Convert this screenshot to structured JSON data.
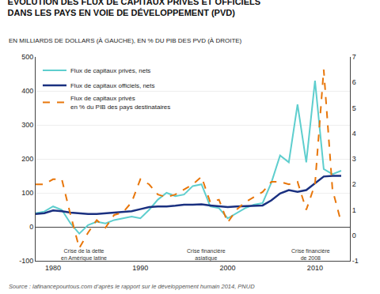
{
  "chart_data": {
    "type": "line",
    "title": "ÉVOLUTION DES FLUX DE CAPITAUX PRIVÉS ET OFFICIELS\nDANS LES PAYS EN VOIE DE DÉVELOPPEMENT (PVD)",
    "subtitle": "EN MILLIARDS DE DOLLARS (À GAUCHE), EN % DU PIB DES PVD (À DROITE)",
    "source": "Source : lafinancepourtous.com d’après le rapport sur le développement humain 2014, PNUD",
    "x": [
      1978,
      1979,
      1980,
      1981,
      1982,
      1983,
      1984,
      1985,
      1986,
      1987,
      1988,
      1989,
      1990,
      1991,
      1992,
      1993,
      1994,
      1995,
      1996,
      1997,
      1998,
      1999,
      2000,
      2001,
      2002,
      2003,
      2004,
      2005,
      2006,
      2007,
      2008,
      2009,
      2010,
      2011,
      2012,
      2013
    ],
    "series": [
      {
        "name": "Flux de capitaux privés, nets",
        "color": "#5ecece",
        "line_style": "solid",
        "values": [
          40,
          45,
          60,
          50,
          10,
          -20,
          5,
          15,
          10,
          20,
          25,
          30,
          25,
          50,
          80,
          100,
          90,
          95,
          120,
          125,
          60,
          55,
          25,
          40,
          55,
          65,
          70,
          130,
          210,
          190,
          360,
          190,
          430,
          170,
          155,
          165
        ]
      },
      {
        "name": "Flux de capitaux officiels, nets",
        "color": "#1a3080",
        "line_style": "solid",
        "values": [
          38,
          40,
          48,
          46,
          42,
          40,
          38,
          38,
          40,
          42,
          43,
          46,
          52,
          58,
          60,
          60,
          62,
          65,
          65,
          66,
          63,
          60,
          58,
          60,
          61,
          63,
          63,
          78,
          98,
          108,
          103,
          108,
          128,
          148,
          150,
          150
        ]
      },
      {
        "name": "Flux de capitaux privés\nen % du PIB des pays destinataires",
        "color": "#e8760a",
        "line_style": "dashed",
        "axis": "y2",
        "values": [
          2.0,
          2.0,
          2.2,
          2.2,
          0.8,
          -0.5,
          0.1,
          0.6,
          0.3,
          0.8,
          0.9,
          1.3,
          2.2,
          2.0,
          1.6,
          1.5,
          1.6,
          1.8,
          2.0,
          2.3,
          1.3,
          1.4,
          0.5,
          1.0,
          1.3,
          1.5,
          1.7,
          2.1,
          2.1,
          2.0,
          2.1,
          1.0,
          2.0,
          6.5,
          1.8,
          0.5
        ]
      }
    ],
    "xlim": [
      1978,
      2014
    ],
    "xticks": [
      1980,
      1990,
      2000,
      2010
    ],
    "ylim": [
      -100,
      500
    ],
    "yticks": [
      -100,
      0,
      100,
      200,
      300,
      400,
      500
    ],
    "y2lim": [
      -1,
      7
    ],
    "y2ticks": [
      -1,
      0,
      1,
      2,
      3,
      4,
      5,
      6,
      7
    ],
    "annotations": [
      {
        "text": "Crise de la dette\nen Amérique latine",
        "x": 1983.5,
        "y": -58
      },
      {
        "text": "Crise financière\nasiatique",
        "x": 1997.5,
        "y": -58
      },
      {
        "text": "Crise financière\nde 2008",
        "x": 2009.5,
        "y": -58
      }
    ],
    "grid": true,
    "legend": "upper left"
  }
}
